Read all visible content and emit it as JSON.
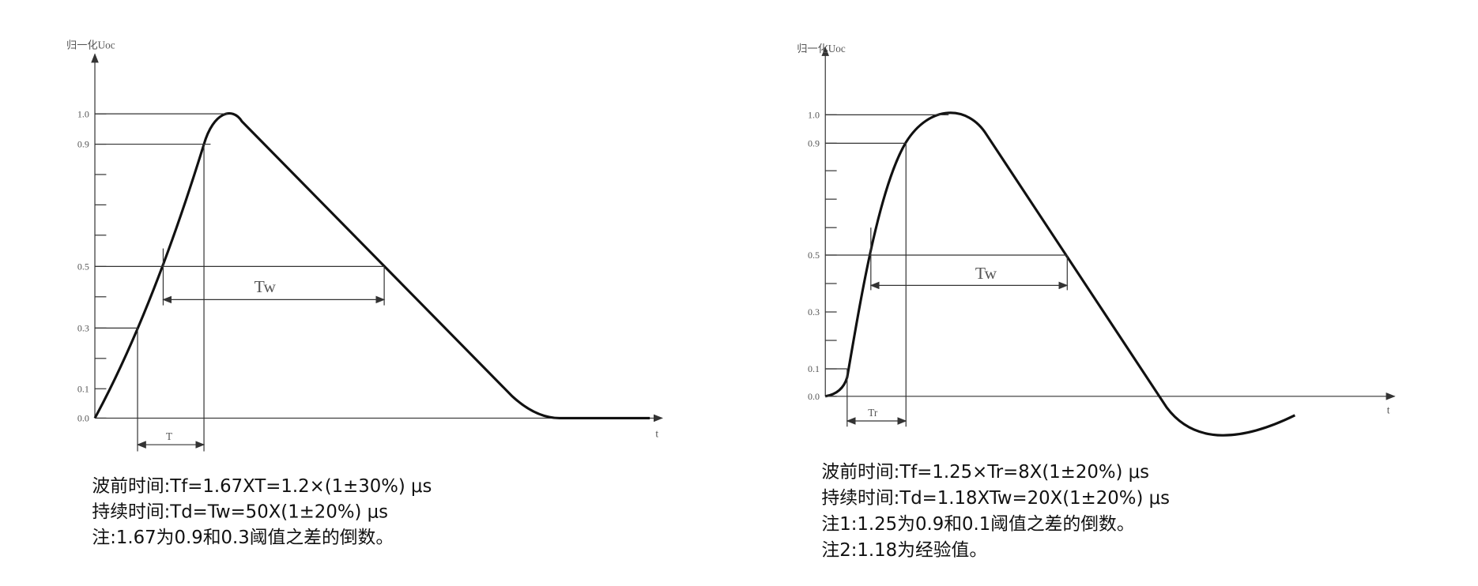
{
  "left": {
    "y_axis_label": "归一化Uoc",
    "x_axis_label": "t",
    "ticks": [
      "1.0",
      "0.9",
      "0.5",
      "0.3",
      "0.1",
      "0.0"
    ],
    "interval_labels": [
      "Tw",
      "T"
    ],
    "notes": [
      "波前时间:Tf=1.67XT=1.2×(1±30%) μs",
      "持续时间:Td=Tw=50X(1±20%) μs",
      "注:1.67为0.9和0.3阈值之差的倒数。"
    ]
  },
  "right": {
    "y_axis_label": "归一化Uoc",
    "x_axis_label": "t",
    "ticks": [
      "1.0",
      "0.9",
      "0.5",
      "0.3",
      "0.1",
      "0.0"
    ],
    "interval_labels": [
      "Tw",
      "Tr"
    ],
    "notes": [
      "波前时间:Tf=1.25×Tr=8X(1±20%) μs",
      "持续时间:Td=1.18XTw=20X(1±20%) μs",
      "注1:1.25为0.9和0.1阈值之差的倒数。",
      "注2:1.18为经验值。"
    ]
  }
}
